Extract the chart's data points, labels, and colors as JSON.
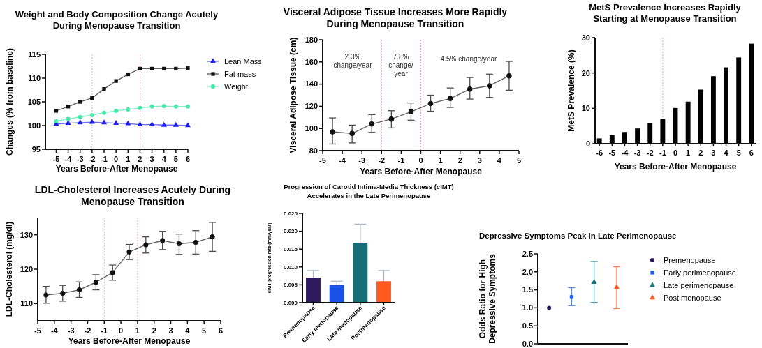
{
  "chart_data": [
    {
      "type": "line",
      "title": "Weight and Body Composition Change Acutely During Menopause Transition",
      "xlabel": "Years Before-After Menopause",
      "ylabel": "Changes (% from baseline)",
      "x": [
        -5,
        -4,
        -3,
        -2,
        -1,
        0,
        1,
        2,
        3,
        4,
        5,
        6
      ],
      "xlim": [
        -5.9,
        6
      ],
      "xticks": [
        -5,
        -4,
        -3,
        -2,
        -1,
        0,
        1,
        2,
        3,
        4,
        5,
        6
      ],
      "ylim": [
        95,
        115
      ],
      "yticks": [
        95,
        100,
        105,
        110,
        115
      ],
      "legend": "right",
      "series": [
        {
          "name": "Lean Mass",
          "color": "#2020ee",
          "marker": "triangle",
          "values": [
            100.3,
            100.5,
            100.6,
            100.7,
            100.6,
            100.5,
            100.4,
            100.2,
            100.2,
            100.1,
            100.1,
            100.0
          ]
        },
        {
          "name": "Fat mass",
          "color": "#111111",
          "marker": "square",
          "values": [
            103.1,
            104.0,
            105.0,
            105.8,
            107.7,
            109.4,
            110.8,
            112.0,
            112.0,
            112.0,
            112.0,
            112.1
          ]
        },
        {
          "name": "Weight",
          "color": "#44e8a8",
          "marker": "circle",
          "values": [
            100.9,
            101.4,
            101.8,
            102.2,
            102.7,
            103.1,
            103.4,
            103.7,
            104.0,
            104.1,
            104.0,
            104.0
          ]
        }
      ],
      "ref_lines": [
        {
          "axis": "x",
          "value": -2,
          "color": "#f4a6bd",
          "line_style": "dotted"
        },
        {
          "axis": "x",
          "value": 2,
          "color": "#f4a6bd",
          "line_style": "dotted"
        }
      ]
    },
    {
      "type": "line",
      "title": "Visceral Adipose Tissue Increases More Rapidly During Menopause Transition",
      "xlabel": "Years Before-After Menopause",
      "ylabel": "Visceral Adipose Tissue (cm)",
      "x": [
        -4.5,
        -3.5,
        -2.5,
        -1.5,
        -0.5,
        0.5,
        1.5,
        2.5,
        3.5,
        4.5
      ],
      "xlim": [
        -5,
        5
      ],
      "xticks": [
        -5,
        -4,
        -3,
        -2,
        -1,
        0,
        1,
        2,
        3,
        4,
        5
      ],
      "ylim": [
        80,
        180
      ],
      "yticks": [
        80,
        100,
        120,
        140,
        160,
        180
      ],
      "marker": "circle",
      "series": [
        {
          "color": "#111111",
          "values": [
            97,
            95.5,
            104,
            108.5,
            115,
            122.5,
            127,
            135.5,
            138.5,
            147.5
          ],
          "errors": [
            [
              86,
              109.5
            ],
            [
              87,
              103
            ],
            [
              96.5,
              112.5
            ],
            [
              100.5,
              116
            ],
            [
              107.5,
              123
            ],
            [
              115.5,
              130
            ],
            [
              119,
              136.5
            ],
            [
              126.5,
              146
            ],
            [
              128,
              149
            ],
            [
              134.5,
              160.5
            ]
          ]
        }
      ],
      "ref_lines": [
        {
          "axis": "x",
          "value": -2,
          "color": "#f4a6bd",
          "line_style": "dotted"
        },
        {
          "axis": "x",
          "value": 0,
          "color": "#f4a6bd",
          "line_style": "dotted"
        }
      ],
      "annotations": [
        "2.3%\nchange/year",
        "7.8%\nchange/\nyear",
        "4.5% change/year"
      ]
    },
    {
      "type": "bar",
      "title": "MetS Prevalence Increases Rapidly Starting at Menopause Transition",
      "xlabel": "Years Before-After Menopause",
      "ylabel": "MetS Prevalence (%)",
      "categories": [
        "-6",
        "-5",
        "-4",
        "-3",
        "-2",
        "-1",
        "0",
        "1",
        "2",
        "3",
        "4",
        "5",
        "6"
      ],
      "values": [
        1.5,
        2.4,
        3.3,
        4.3,
        5.9,
        7.0,
        10.1,
        11.9,
        15.3,
        19.1,
        21.6,
        24.4,
        28.3
      ],
      "color": "#000000",
      "ylim": [
        0,
        30
      ],
      "yticks": [
        0,
        10,
        20,
        30
      ],
      "ref_lines": [
        {
          "axis": "x",
          "value": "-1",
          "color": "#f4a6bd",
          "line_style": "dotted"
        }
      ]
    },
    {
      "type": "line",
      "title": "LDL-Cholesterol Increases Acutely During Menopause Transition",
      "xlabel": "Years Before-After Menopause",
      "ylabel": "LDL-Cholesterol (mg/dl)",
      "x": [
        -4.5,
        -3.5,
        -2.5,
        -1.5,
        -0.5,
        0.5,
        1.5,
        2.5,
        3.5,
        4.5,
        5.5
      ],
      "xlim": [
        -5,
        6
      ],
      "xticks": [
        -5,
        -4,
        -3,
        -2,
        -1,
        0,
        1,
        2,
        3,
        4,
        5,
        6
      ],
      "ylim": [
        105,
        135
      ],
      "yticks": [
        110,
        120,
        130
      ],
      "marker": "circle",
      "series": [
        {
          "color": "#111111",
          "values": [
            112.5,
            113,
            114,
            116.2,
            119,
            125,
            127.1,
            128.3,
            127.4,
            127.8,
            129.4
          ],
          "errors": [
            [
              110.1,
              115
            ],
            [
              110.7,
              115.3
            ],
            [
              111.8,
              116.3
            ],
            [
              114,
              118.4
            ],
            [
              116.8,
              121.2
            ],
            [
              122.8,
              127.2
            ],
            [
              124.7,
              129.4
            ],
            [
              125.7,
              131
            ],
            [
              124.3,
              130.2
            ],
            [
              124.4,
              131.2
            ],
            [
              125.2,
              133.6
            ]
          ]
        }
      ],
      "ref_lines": [
        {
          "axis": "x",
          "value": -1,
          "color": "#f4a6bd",
          "line_style": "dotted"
        },
        {
          "axis": "x",
          "value": 1,
          "color": "#f4a6bd",
          "line_style": "dotted"
        }
      ]
    },
    {
      "type": "bar",
      "title": "Progression of Carotid Intima-Media Thickness (cIMT) Accelerates in the Late Perimenopause",
      "ylabel": "cIMT progression rate (mm/year)",
      "categories": [
        "Premenopause",
        "Early menopause",
        "Late menopause",
        "Postmenopause"
      ],
      "values": [
        0.007,
        0.005,
        0.0168,
        0.006
      ],
      "colors": [
        "#2d1b5e",
        "#1a52e8",
        "#156d75",
        "#ff5a1f"
      ],
      "errors": [
        [
          0.007,
          0.009
        ],
        [
          0.005,
          0.006
        ],
        [
          0.0168,
          0.022
        ],
        [
          0.006,
          0.009
        ]
      ],
      "ylim": [
        0,
        0.025
      ],
      "yticks": [
        {
          "value": 0,
          "label": "0.000"
        },
        {
          "value": 0.005,
          "label": "0.005"
        },
        {
          "value": 0.01,
          "label": "0.010"
        },
        {
          "value": 0.015,
          "label": "0.015"
        },
        {
          "value": 0.02,
          "label": "0.020"
        },
        {
          "value": 0.025,
          "label": "0.025"
        }
      ]
    },
    {
      "type": "scatter",
      "title": "Depressive Symptoms Peak in Late Perimenopause",
      "ylabel": "Odds Ratio for High Depressive Symptoms",
      "categories": [
        null,
        null,
        null,
        null
      ],
      "ylim": [
        0,
        2.5
      ],
      "yticks": [
        {
          "value": 0,
          "label": "0.0"
        },
        {
          "value": 0.5,
          "label": "0.5"
        },
        {
          "value": 1,
          "label": "1.0"
        },
        {
          "value": 1.5,
          "label": "1.5"
        },
        {
          "value": 2,
          "label": "2.0"
        },
        {
          "value": 2.5,
          "label": "2.5"
        }
      ],
      "tick_labels": "y",
      "legend": "right",
      "series": [
        {
          "name": "Premenopause",
          "color": "#2a1a5e",
          "marker": "circle",
          "values": [
            1.0,
            null,
            null,
            null
          ]
        },
        {
          "name": "Early perimenopause",
          "color": "#1a5ef0",
          "marker": "square",
          "values": [
            null,
            1.3,
            null,
            null
          ],
          "errors": [
            null,
            [
              1.06,
              1.56
            ],
            null,
            null
          ]
        },
        {
          "name": "Late perimenopause",
          "color": "#157a80",
          "marker": "triangle",
          "values": [
            null,
            null,
            1.71,
            null
          ],
          "errors": [
            null,
            null,
            [
              1.15,
              2.29
            ],
            null
          ]
        },
        {
          "name": "Post menopause",
          "color": "#ff5a1f",
          "marker": "triangle",
          "values": [
            null,
            null,
            null,
            1.57
          ],
          "errors": [
            null,
            null,
            null,
            [
              0.98,
              2.14
            ]
          ]
        }
      ]
    }
  ]
}
